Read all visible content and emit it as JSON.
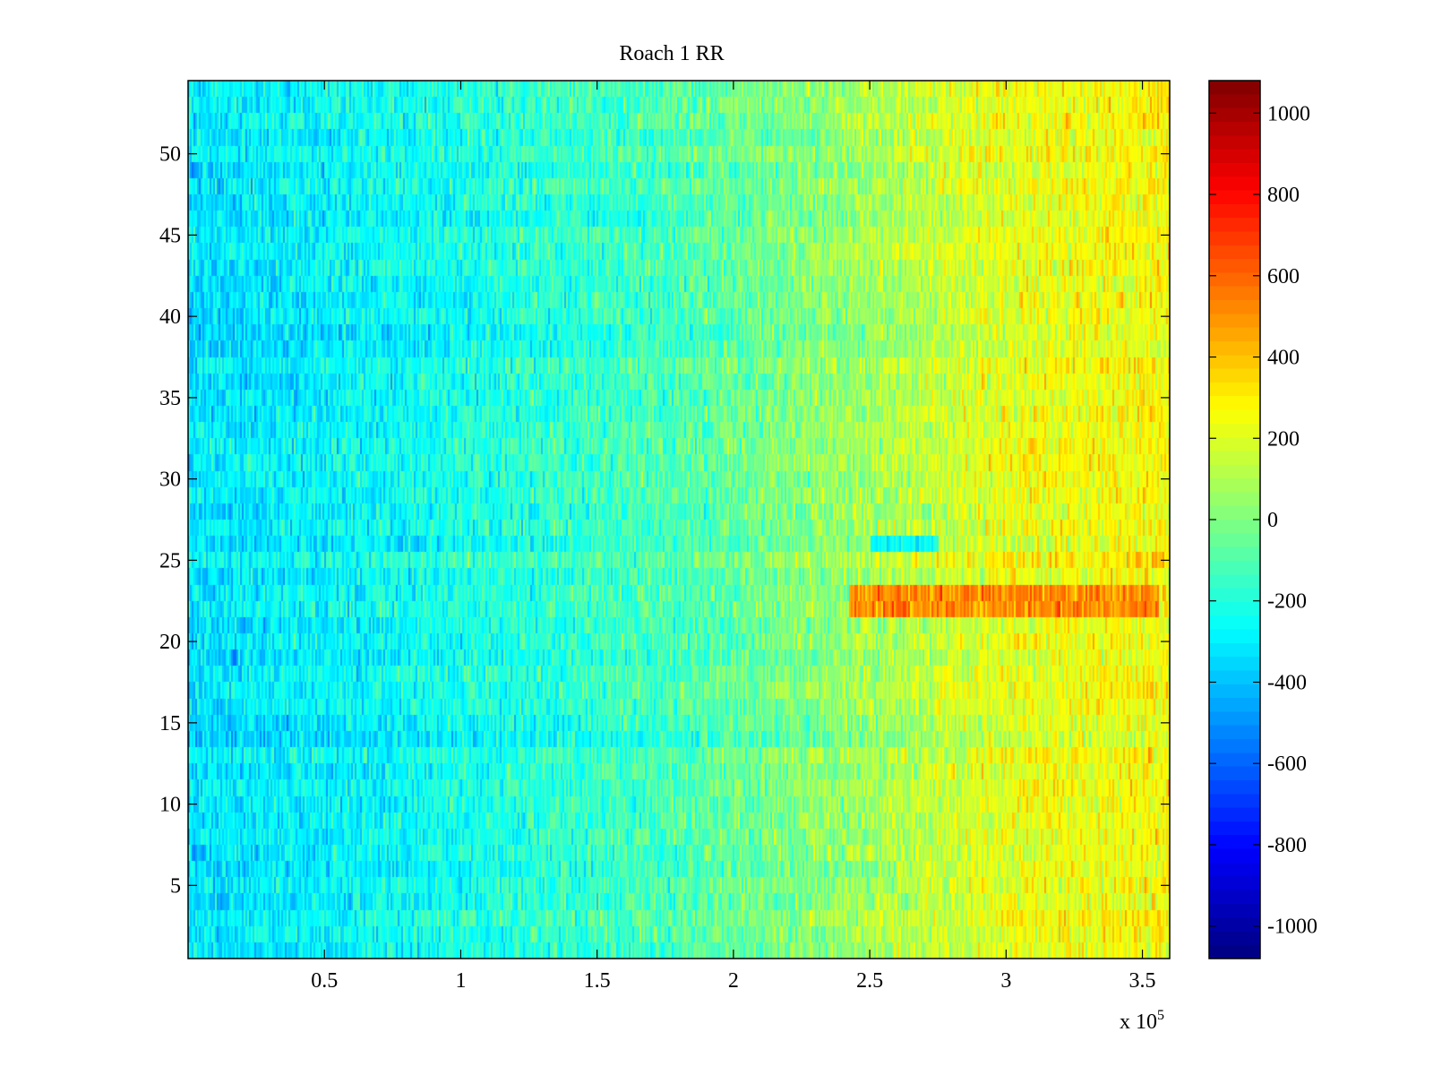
{
  "chart_data": {
    "type": "heatmap",
    "title": "Roach 1 RR",
    "xlabel": "",
    "ylabel": "",
    "x_exponent_label": "x 10",
    "x_exponent_power": "5",
    "x_range": [
      0,
      3.6
    ],
    "y_range": [
      0.5,
      54.5
    ],
    "rows": 54,
    "x_ticks": [
      "0.5",
      "1",
      "1.5",
      "2",
      "2.5",
      "3",
      "3.5"
    ],
    "y_ticks": [
      "5",
      "10",
      "15",
      "20",
      "25",
      "30",
      "35",
      "40",
      "45",
      "50"
    ],
    "colorbar": {
      "colormap": "jet",
      "range": [
        -1080,
        1080
      ],
      "ticks": [
        "1000",
        "800",
        "600",
        "400",
        "200",
        "0",
        "-200",
        "-400",
        "-600",
        "-800",
        "-1000"
      ]
    },
    "trend": {
      "description_x_breakpoints": [
        0,
        0.8,
        1.8,
        2.45,
        3.0,
        3.6
      ],
      "approx_mean_values": [
        -330,
        -250,
        -110,
        60,
        220,
        270
      ]
    },
    "highlight_band": {
      "rows": [
        21.5,
        23.5
      ],
      "x_range": [
        2.42,
        3.56
      ],
      "approx_value": 520
    },
    "cool_band": {
      "rows": [
        25.5,
        26.5
      ],
      "x_range": [
        2.5,
        2.75
      ],
      "approx_value": -260
    }
  },
  "colors": {
    "axis": "#000000",
    "background": "#ffffff"
  }
}
